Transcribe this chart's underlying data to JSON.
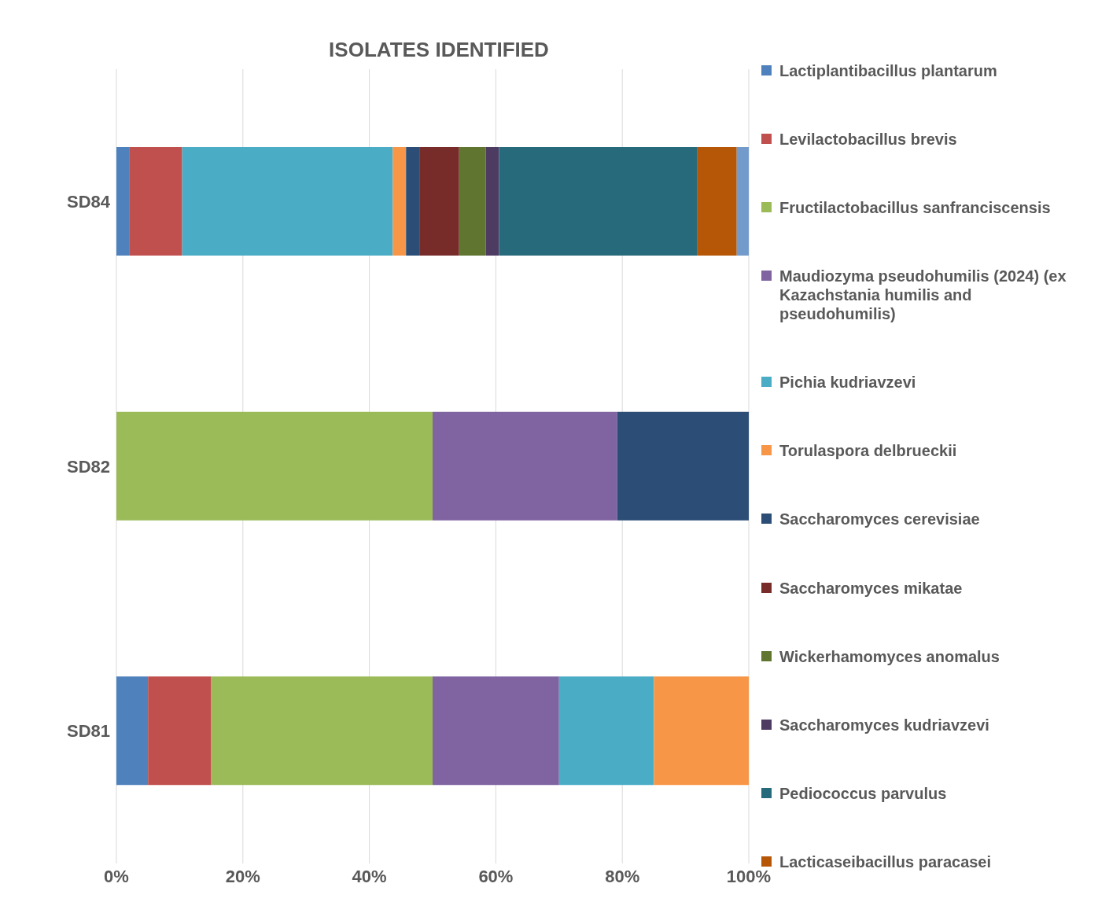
{
  "chart_data": {
    "type": "bar",
    "orientation": "horizontal",
    "stacked": true,
    "title": "ISOLATES IDENTIFIED",
    "categories": [
      "SD84",
      "SD82",
      "SD81"
    ],
    "series": [
      {
        "name": "Lactiplantibacillus plantarum",
        "color": "#4f81bd",
        "values": [
          2.1,
          0,
          5
        ]
      },
      {
        "name": "Levilactobacillus brevis",
        "color": "#c0504d",
        "values": [
          8.3,
          0,
          10
        ]
      },
      {
        "name": "Fructilactobacillus sanfranciscensis",
        "color": "#9bbb59",
        "values": [
          0,
          50,
          35
        ]
      },
      {
        "name": "Maudiozyma pseudohumilis (2024) (ex Kazachstania humilis and pseudohumilis)",
        "color": "#8064a2",
        "values": [
          0,
          29.2,
          20
        ]
      },
      {
        "name": "Pichia kudriavzevi",
        "color": "#4bacc6",
        "values": [
          33.3,
          0,
          15
        ]
      },
      {
        "name": "Torulaspora delbrueckii",
        "color": "#f79646",
        "values": [
          2.1,
          0,
          15
        ]
      },
      {
        "name": "Saccharomyces cerevisiae",
        "color": "#2c4d75",
        "values": [
          2.1,
          20.8,
          0
        ]
      },
      {
        "name": "Saccharomyces mikatae",
        "color": "#772c2a",
        "values": [
          6.3,
          0,
          0
        ]
      },
      {
        "name": "Wickerhamomyces anomalus",
        "color": "#5f7530",
        "values": [
          4.2,
          0,
          0
        ]
      },
      {
        "name": "Saccharomyces kudriavzevi",
        "color": "#4d3b62",
        "values": [
          2.1,
          0,
          0
        ]
      },
      {
        "name": "Pediococcus parvulus",
        "color": "#276a7c",
        "values": [
          31.3,
          0,
          0
        ]
      },
      {
        "name": "Lacticaseibacillus paracasei",
        "color": "#b65708",
        "values": [
          6.3,
          0,
          0
        ]
      },
      {
        "color": "#729aca",
        "values": [
          2.1,
          0,
          0
        ]
      }
    ],
    "xlim": [
      0,
      100
    ],
    "xticks": [
      {
        "value": 0,
        "label": "0%"
      },
      {
        "value": 20,
        "label": "20%"
      },
      {
        "value": 40,
        "label": "40%"
      },
      {
        "value": 60,
        "label": "60%"
      },
      {
        "value": 80,
        "label": "80%"
      },
      {
        "value": 100,
        "label": "100%"
      }
    ],
    "grid": "x",
    "legend": "right"
  }
}
